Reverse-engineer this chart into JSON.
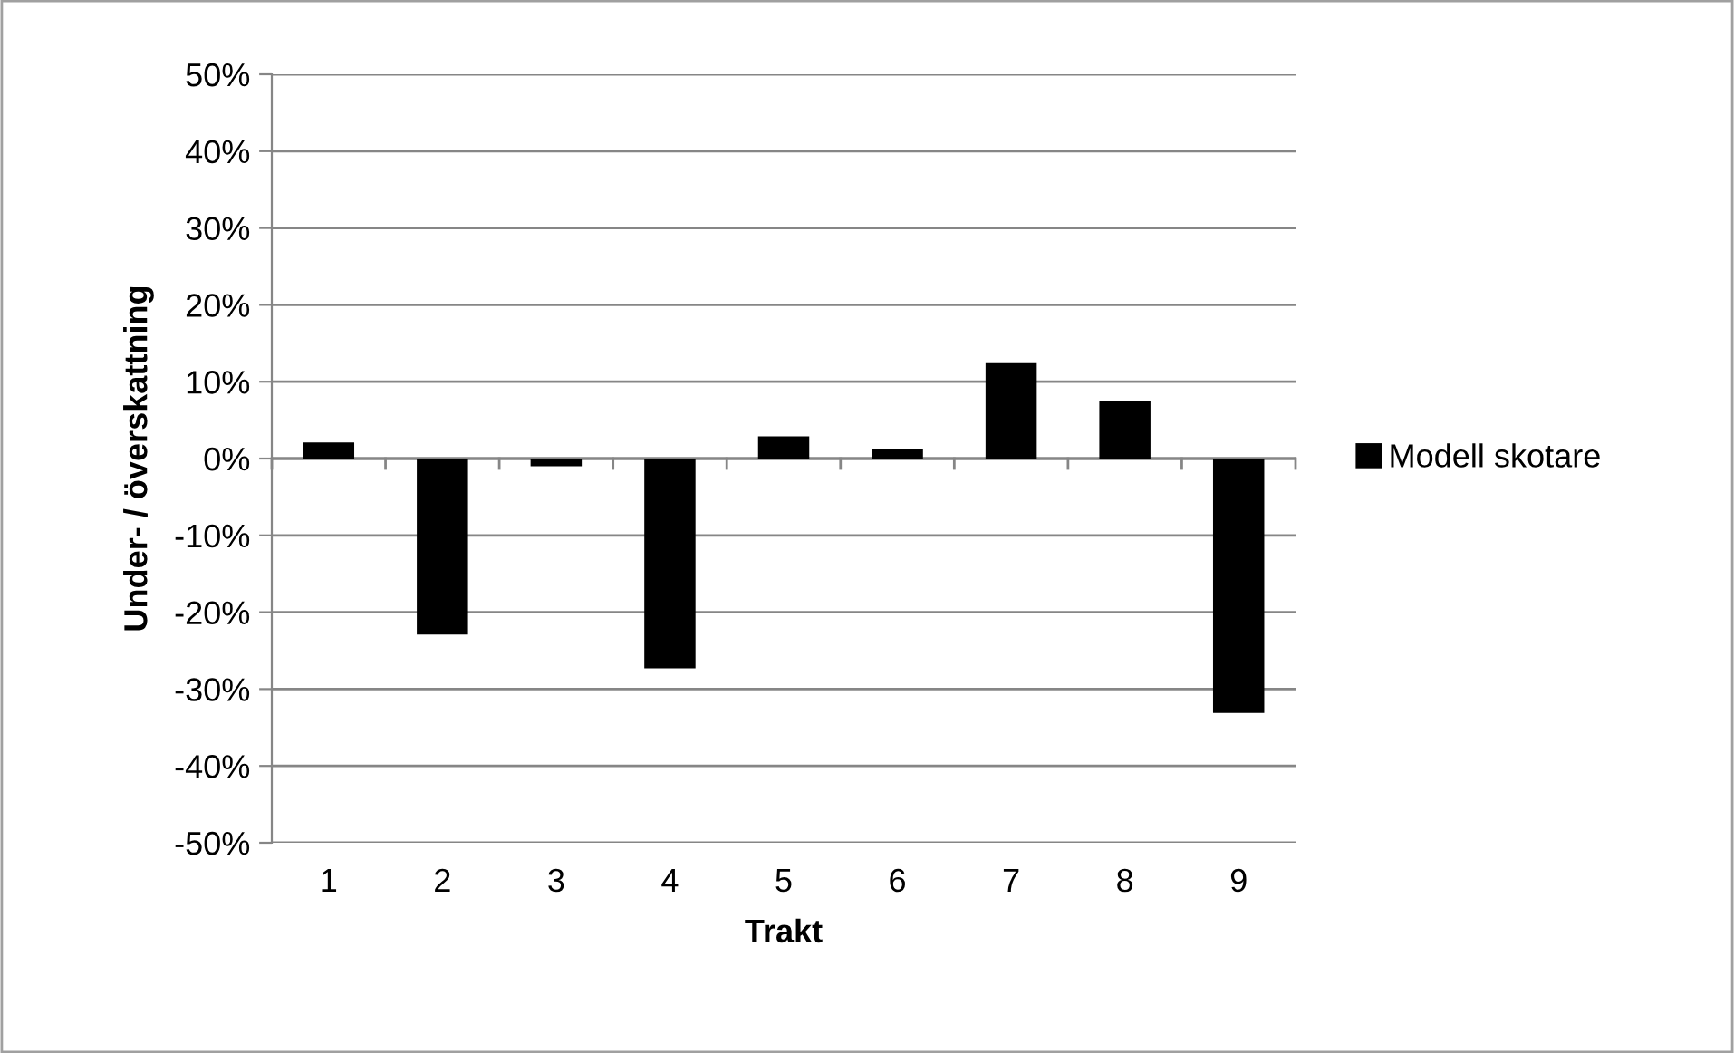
{
  "chart_data": {
    "type": "bar",
    "xlabel": "Trakt",
    "ylabel": "Under- / överskattning",
    "categories": [
      "1",
      "2",
      "3",
      "4",
      "5",
      "6",
      "7",
      "8",
      "9"
    ],
    "series": [
      {
        "name": "Modell skotare",
        "color": "#000000",
        "values": [
          2.1,
          -22.9,
          -1.0,
          -27.3,
          2.9,
          1.2,
          12.4,
          7.5,
          -33.1
        ]
      }
    ],
    "ylim": [
      -50,
      50
    ],
    "yticks": [
      {
        "value": -50,
        "label": "-50%"
      },
      {
        "value": -40,
        "label": "-40%"
      },
      {
        "value": -30,
        "label": "-30%"
      },
      {
        "value": -20,
        "label": "-20%"
      },
      {
        "value": -10,
        "label": "-10%"
      },
      {
        "value": 0,
        "label": "0%"
      },
      {
        "value": 10,
        "label": "10%"
      },
      {
        "value": 20,
        "label": "20%"
      },
      {
        "value": 30,
        "label": "30%"
      },
      {
        "value": 40,
        "label": "40%"
      },
      {
        "value": 50,
        "label": "50%"
      }
    ],
    "grid": "y",
    "legend": "right"
  }
}
